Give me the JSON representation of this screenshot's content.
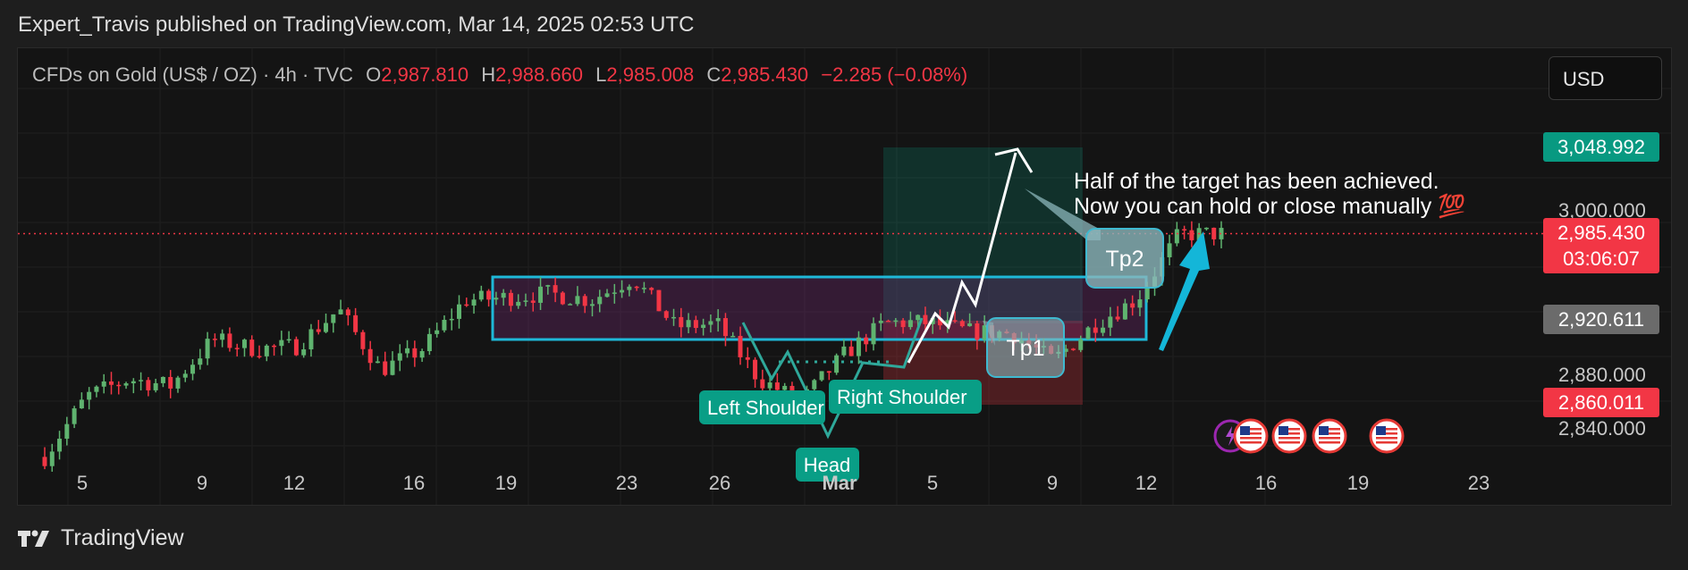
{
  "header": {
    "publish_line": "Expert_Travis published on TradingView.com, Mar 14, 2025 02:53 UTC"
  },
  "symbol": {
    "name": "CFDs on Gold (US$ / OZ) · 4h · TVC",
    "open_label": "O",
    "open": "2,987.810",
    "high_label": "H",
    "high": "2,988.660",
    "low_label": "L",
    "low": "2,985.008",
    "close_label": "C",
    "close": "2,985.430",
    "change": "−2.285 (−0.08%)"
  },
  "currency_button": {
    "label": "USD"
  },
  "price_tags": {
    "tag_green": "3,048.992",
    "tag_last": "2,985.430",
    "tag_countdown": "03:06:07",
    "tag_gray": "2,920.611",
    "tag_red": "2,860.011"
  },
  "colors": {
    "up": "#5fb36f",
    "down": "#f23645",
    "accent": "#00bcd4",
    "teal": "#089981",
    "gray_tag": "#6b6b6b"
  },
  "annotations": {
    "note_line1": "Half of the target has been achieved.",
    "note_line2": "Now you can hold or close manually 💯",
    "tp2": "Tp2",
    "tp1": "Tp1",
    "left_shoulder": "Left Shoulder",
    "right_shoulder": "Right Shoulder",
    "head": "Head"
  },
  "events": {
    "icons": [
      "lightning-event-icon",
      "us-flag-icon",
      "us-flag-icon",
      "us-flag-icon",
      "us-flag-icon"
    ]
  },
  "footer": {
    "brand": "TradingView"
  },
  "chart_data": {
    "type": "candlestick",
    "title": "CFDs on Gold (US$ / OZ) · 4h · TVC",
    "y_ticks": [
      "3,000.000",
      "2,880.000",
      "2,840.000"
    ],
    "ylim": [
      2810,
      3095
    ],
    "x_ticks": [
      "5",
      "9",
      "12",
      "16",
      "19",
      "23",
      "26",
      "Mar",
      "5",
      "9",
      "12",
      "16",
      "19",
      "23"
    ],
    "last_price": 2985.43,
    "grid": true,
    "series": [
      {
        "x": "Feb 4",
        "close": 2816
      },
      {
        "x": "Feb 5",
        "close": 2862
      },
      {
        "x": "Feb 6",
        "close": 2875
      },
      {
        "x": "Feb 7",
        "close": 2870
      },
      {
        "x": "Feb 10",
        "close": 2905
      },
      {
        "x": "Feb 11",
        "close": 2898
      },
      {
        "x": "Feb 12",
        "close": 2900
      },
      {
        "x": "Feb 13",
        "close": 2928
      },
      {
        "x": "Feb 14",
        "close": 2882
      },
      {
        "x": "Feb 17",
        "close": 2898
      },
      {
        "x": "Feb 18",
        "close": 2935
      },
      {
        "x": "Feb 19",
        "close": 2937
      },
      {
        "x": "Feb 20",
        "close": 2940
      },
      {
        "x": "Feb 21",
        "close": 2935
      },
      {
        "x": "Feb 24",
        "close": 2952
      },
      {
        "x": "Feb 25",
        "close": 2915
      },
      {
        "x": "Feb 26",
        "close": 2917
      },
      {
        "x": "Feb 27",
        "close": 2875
      },
      {
        "x": "Feb 28",
        "close": 2858
      },
      {
        "x": "Mar 3",
        "close": 2893
      },
      {
        "x": "Mar 4",
        "close": 2918
      },
      {
        "x": "Mar 5",
        "close": 2918
      },
      {
        "x": "Mar 6",
        "close": 2911
      },
      {
        "x": "Mar 7",
        "close": 2910
      },
      {
        "x": "Mar 10",
        "close": 2889
      },
      {
        "x": "Mar 11",
        "close": 2917
      },
      {
        "x": "Mar 12",
        "close": 2936
      },
      {
        "x": "Mar 13",
        "close": 2985
      },
      {
        "x": "Mar 14",
        "close": 2985.43
      }
    ]
  }
}
